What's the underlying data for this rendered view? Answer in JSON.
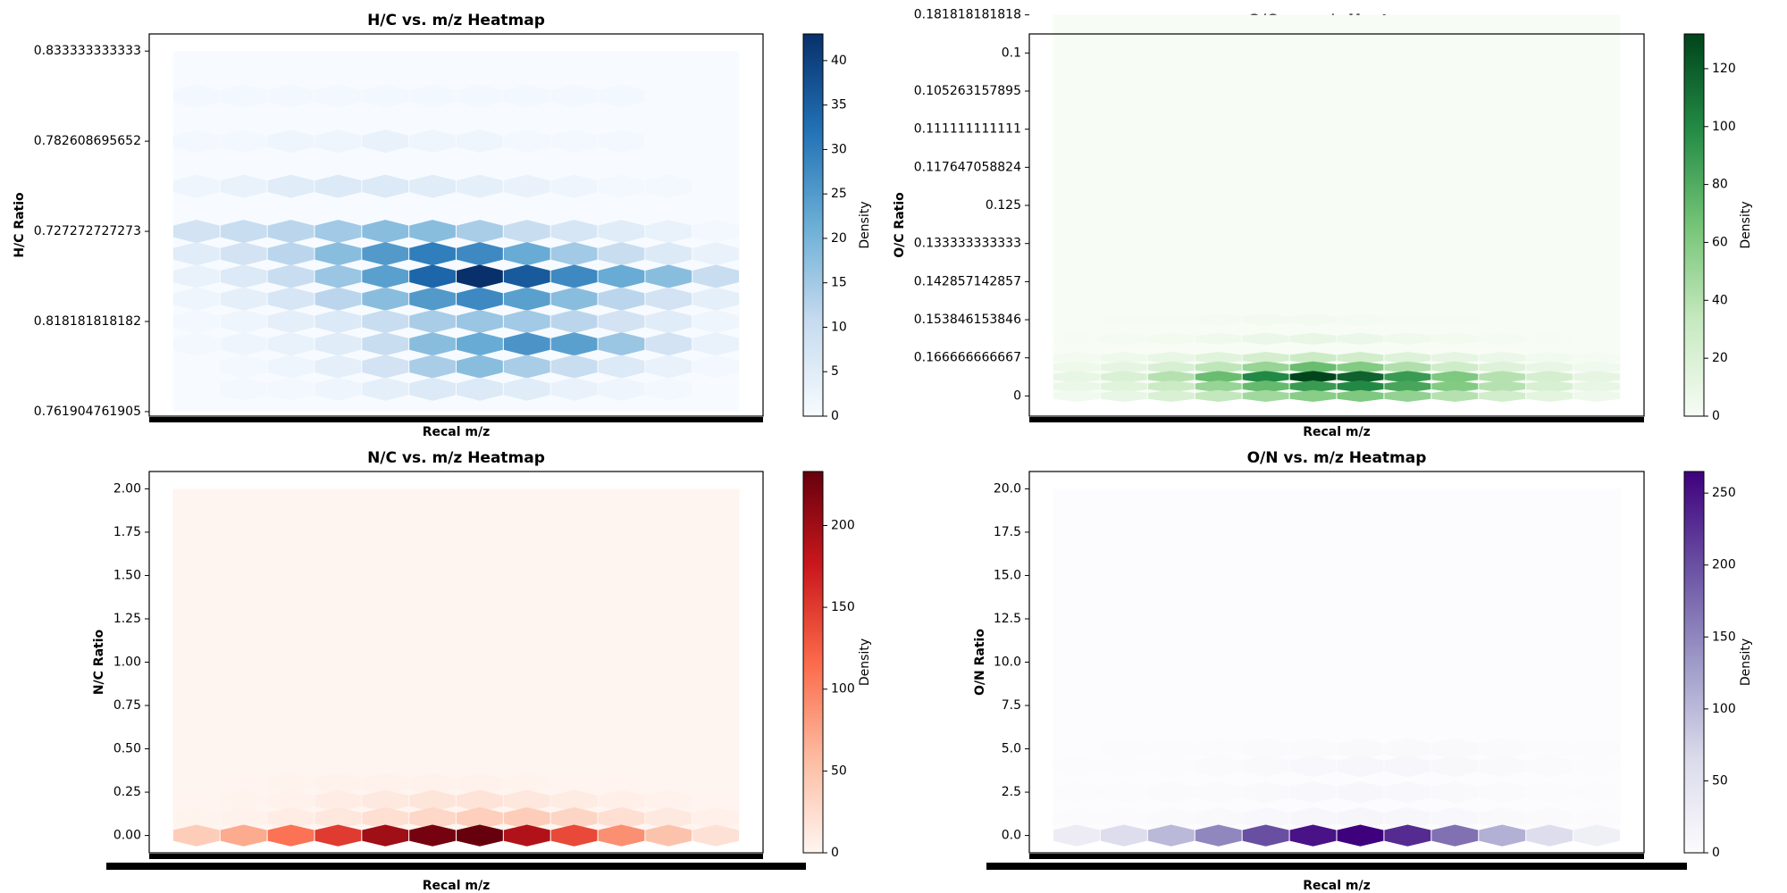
{
  "chart_data": [
    {
      "type": "hexbin",
      "title": "H/C vs. m/z Heatmap",
      "xlabel": "Recal m/z",
      "ylabel": "H/C Ratio",
      "colors": [
        "#f7fbff",
        "#c6dbef",
        "#6baed6",
        "#2171b5",
        "#08306b"
      ],
      "xlim": [
        0,
        13
      ],
      "ylim": [
        -0.05,
        4.19
      ],
      "yticks": [
        {
          "value": 0,
          "label": "0.761904761905"
        },
        {
          "value": 1,
          "label": "0.818181818182"
        },
        {
          "value": 2,
          "label": "0.727272727273"
        },
        {
          "value": 3,
          "label": "0.782608695652"
        },
        {
          "value": 4,
          "label": "0.833333333333"
        }
      ],
      "x": [
        1,
        2,
        3,
        4,
        5,
        6,
        7,
        8,
        9,
        10,
        11,
        12
      ],
      "y": [
        3.5,
        3.0,
        2.5,
        2.0,
        1.75,
        1.5,
        1.25,
        1.0,
        0.75,
        0.5,
        0.25
      ],
      "values": [
        [
          1,
          1,
          1,
          1,
          1,
          1,
          1,
          1,
          1,
          1,
          0,
          0
        ],
        [
          1,
          1,
          2,
          2,
          3,
          2,
          2,
          1,
          1,
          1,
          0,
          0
        ],
        [
          2,
          3,
          5,
          6,
          6,
          5,
          4,
          3,
          2,
          1,
          1,
          0
        ],
        [
          8,
          10,
          12,
          15,
          18,
          18,
          14,
          10,
          7,
          5,
          3,
          1
        ],
        [
          5,
          8,
          12,
          18,
          25,
          30,
          28,
          22,
          15,
          10,
          6,
          3
        ],
        [
          3,
          6,
          10,
          16,
          24,
          34,
          43,
          36,
          28,
          22,
          18,
          10
        ],
        [
          2,
          4,
          7,
          12,
          18,
          25,
          28,
          24,
          18,
          12,
          8,
          4
        ],
        [
          1,
          2,
          4,
          6,
          10,
          14,
          16,
          15,
          12,
          8,
          5,
          2
        ],
        [
          1,
          2,
          3,
          5,
          10,
          18,
          22,
          26,
          24,
          16,
          8,
          3
        ],
        [
          0,
          1,
          2,
          4,
          8,
          14,
          18,
          14,
          10,
          6,
          3,
          1
        ],
        [
          0,
          1,
          1,
          2,
          4,
          6,
          6,
          5,
          3,
          2,
          1,
          0
        ]
      ],
      "colorbar": {
        "label": "Density",
        "lim": [
          0,
          43
        ],
        "ticks": [
          0,
          5,
          10,
          15,
          20,
          25,
          30,
          35,
          40
        ]
      }
    },
    {
      "type": "hexbin",
      "title": "O/C vs. m/z Heatmap",
      "xlabel": "Recal m/z",
      "ylabel": "O/C Ratio",
      "colors": [
        "#f7fcf5",
        "#c7e9c0",
        "#74c476",
        "#238b45",
        "#00441b"
      ],
      "xlim": [
        0,
        13
      ],
      "ylim": [
        -0.53,
        9.5
      ],
      "yticks": [
        0,
        {
          "value": 1,
          "label": "0.166666666667"
        },
        {
          "value": 2,
          "label": "0.153846153846"
        },
        {
          "value": 3,
          "label": "0.142857142857"
        },
        {
          "value": 4,
          "label": "0.133333333333"
        },
        {
          "value": 5,
          "label": "0.125"
        },
        {
          "value": 6,
          "label": "0.117647058824"
        },
        {
          "value": 7,
          "label": "0.111111111111"
        },
        {
          "value": 8,
          "label": "0.105263157895"
        },
        {
          "value": 9,
          "label": "0.1"
        },
        {
          "value": 10,
          "label": "0.181818181818"
        }
      ],
      "x": [
        1,
        2,
        3,
        4,
        5,
        6,
        7,
        8,
        9,
        10,
        11,
        12
      ],
      "y": [
        2.0,
        1.5,
        1.0,
        0.75,
        0.5,
        0.25,
        0
      ],
      "values": [
        [
          0,
          1,
          1,
          2,
          3,
          3,
          2,
          1,
          1,
          0,
          0,
          0
        ],
        [
          1,
          2,
          3,
          5,
          8,
          10,
          8,
          5,
          3,
          2,
          1,
          0
        ],
        [
          3,
          6,
          10,
          16,
          24,
          30,
          26,
          18,
          12,
          8,
          4,
          2
        ],
        [
          6,
          12,
          22,
          36,
          52,
          70,
          60,
          42,
          28,
          18,
          10,
          5
        ],
        [
          10,
          20,
          40,
          70,
          100,
          132,
          118,
          90,
          62,
          40,
          24,
          12
        ],
        [
          8,
          16,
          30,
          52,
          72,
          90,
          100,
          84,
          60,
          40,
          22,
          10
        ],
        [
          4,
          10,
          20,
          34,
          48,
          58,
          62,
          54,
          40,
          26,
          14,
          6
        ]
      ],
      "colorbar": {
        "label": "Density",
        "lim": [
          0,
          132
        ],
        "ticks": [
          0,
          20,
          40,
          60,
          80,
          100,
          120
        ]
      }
    },
    {
      "type": "hexbin",
      "title": "N/C vs. m/z Heatmap",
      "xlabel": "Recal m/z",
      "ylabel": "N/C Ratio",
      "colors": [
        "#fff5f0",
        "#fcbba1",
        "#fb6a4a",
        "#cb181d",
        "#67000d"
      ],
      "xlim": [
        0,
        13
      ],
      "ylim": [
        -0.1,
        2.1
      ],
      "yticks": [
        {
          "value": 0,
          "label": "0.00"
        },
        {
          "value": 0.25,
          "label": "0.25"
        },
        {
          "value": 0.5,
          "label": "0.50"
        },
        {
          "value": 0.75,
          "label": "0.75"
        },
        {
          "value": 1,
          "label": "1.00"
        },
        {
          "value": 1.25,
          "label": "1.25"
        },
        {
          "value": 1.5,
          "label": "1.50"
        },
        {
          "value": 1.75,
          "label": "1.75"
        },
        {
          "value": 2,
          "label": "2.00"
        }
      ],
      "x": [
        1,
        2,
        3,
        4,
        5,
        6,
        7,
        8,
        9,
        10,
        11,
        12
      ],
      "y": [
        0.3,
        0.2,
        0.1,
        0
      ],
      "values": [
        [
          0,
          1,
          2,
          3,
          4,
          4,
          3,
          2,
          1,
          1,
          0,
          0
        ],
        [
          1,
          2,
          4,
          8,
          12,
          16,
          18,
          14,
          10,
          6,
          3,
          1
        ],
        [
          2,
          4,
          8,
          14,
          22,
          30,
          38,
          40,
          32,
          22,
          12,
          5
        ],
        [
          40,
          70,
          110,
          150,
          200,
          225,
          233,
          190,
          140,
          90,
          50,
          20
        ]
      ],
      "colorbar": {
        "label": "Density",
        "lim": [
          0,
          233
        ],
        "ticks": [
          0,
          50,
          100,
          150,
          200
        ]
      }
    },
    {
      "type": "hexbin",
      "title": "O/N vs. m/z Heatmap",
      "xlabel": "Recal m/z",
      "ylabel": "O/N Ratio",
      "colors": [
        "#fcfbfd",
        "#dadaeb",
        "#9e9ac8",
        "#6a51a3",
        "#3f007d"
      ],
      "xlim": [
        0,
        13
      ],
      "ylim": [
        -1,
        21
      ],
      "yticks": [
        {
          "value": 0,
          "label": "0.0"
        },
        {
          "value": 2.5,
          "label": "2.5"
        },
        {
          "value": 5,
          "label": "5.0"
        },
        {
          "value": 7.5,
          "label": "7.5"
        },
        {
          "value": 10,
          "label": "10.0"
        },
        {
          "value": 12.5,
          "label": "12.5"
        },
        {
          "value": 15,
          "label": "15.0"
        },
        {
          "value": 17.5,
          "label": "17.5"
        },
        {
          "value": 20,
          "label": "20.0"
        }
      ],
      "x": [
        1,
        2,
        3,
        4,
        5,
        6,
        7,
        8,
        9,
        10,
        11,
        12
      ],
      "y": [
        5,
        4,
        2.5,
        1,
        0
      ],
      "values": [
        [
          0,
          1,
          1,
          2,
          3,
          4,
          5,
          6,
          5,
          4,
          2,
          1
        ],
        [
          1,
          1,
          2,
          3,
          5,
          8,
          10,
          9,
          7,
          5,
          3,
          1
        ],
        [
          1,
          2,
          3,
          4,
          6,
          8,
          9,
          8,
          6,
          4,
          2,
          1
        ],
        [
          1,
          2,
          3,
          5,
          8,
          10,
          12,
          10,
          8,
          5,
          3,
          1
        ],
        [
          30,
          60,
          100,
          150,
          200,
          250,
          265,
          230,
          170,
          110,
          60,
          25
        ]
      ],
      "colorbar": {
        "label": "Density",
        "lim": [
          0,
          265
        ],
        "ticks": [
          0,
          50,
          100,
          150,
          200,
          250
        ]
      }
    }
  ]
}
